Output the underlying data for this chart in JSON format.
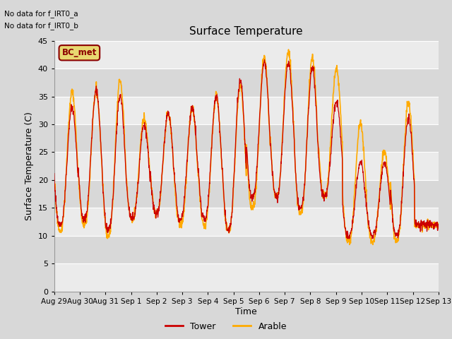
{
  "title": "Surface Temperature",
  "ylabel": "Surface Temperature (C)",
  "xlabel": "Time",
  "ylim": [
    0,
    45
  ],
  "annotation_lines": [
    "No data for f_IRT0_a",
    "No data for f_IRT0_b"
  ],
  "bc_met_label": "BC_met",
  "bc_met_fill": "#e8d870",
  "bc_met_edge": "#8b0000",
  "bc_met_text": "#8b0000",
  "bg_color": "#d8d8d8",
  "band_light": "#ebebeb",
  "band_dark": "#d8d8d8",
  "tower_color": "#cc0000",
  "arable_color": "#ffaa00",
  "tick_labels": [
    "Aug 29",
    "Aug 30",
    "Aug 31",
    "Sep 1",
    "Sep 2",
    "Sep 3",
    "Sep 4",
    "Sep 5",
    "Sep 6",
    "Sep 7",
    "Sep 8",
    "Sep 9",
    "Sep 10",
    "Sep 11",
    "Sep 12",
    "Sep 13"
  ],
  "yticks": [
    0,
    5,
    10,
    15,
    20,
    25,
    30,
    35,
    40,
    45
  ],
  "num_days": 15,
  "points_per_day": 96,
  "day_peaks_tower": [
    33,
    36,
    35,
    30,
    32,
    33,
    35,
    38,
    41,
    41,
    40,
    34,
    23,
    23,
    31,
    12
  ],
  "day_mins_tower": [
    12,
    13,
    11,
    13,
    14,
    13,
    13,
    11,
    17,
    17,
    15,
    17,
    10,
    10,
    10,
    12
  ],
  "day_peaks_arable": [
    36,
    36,
    38,
    31,
    32,
    33,
    35,
    37,
    42,
    43,
    42,
    40,
    30,
    25,
    34,
    12
  ],
  "day_mins_arable": [
    11,
    12,
    10,
    13,
    14,
    12,
    12,
    11,
    15,
    17,
    14,
    17,
    9,
    9,
    9,
    12
  ]
}
